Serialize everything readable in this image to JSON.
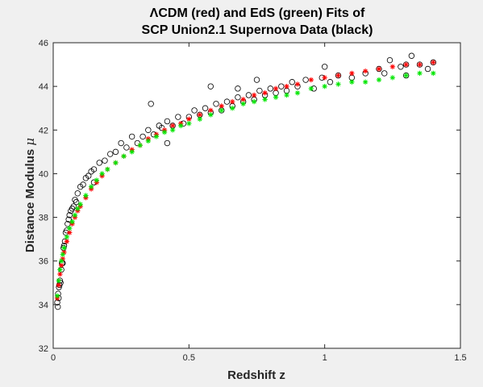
{
  "chart_data": {
    "type": "scatter",
    "title_lines": [
      "ΛCDM (red) and EdS (green) Fits of",
      "SCP Union2.1 Supernova Data (black)"
    ],
    "xlabel": "Redshift z",
    "ylabel_text": "Distance Modulus",
    "ylabel_symbol": "μ",
    "xlim": [
      0,
      1.5
    ],
    "ylim": [
      32,
      46
    ],
    "xticks": [
      0,
      0.5,
      1,
      1.5
    ],
    "xtick_labels": [
      "0",
      "0.5",
      "1",
      "1.5"
    ],
    "yticks": [
      32,
      34,
      36,
      38,
      40,
      42,
      44,
      46
    ],
    "ytick_labels": [
      "32",
      "34",
      "36",
      "38",
      "40",
      "42",
      "44",
      "46"
    ],
    "grid": false,
    "colors": {
      "data": "#000000",
      "lcdm": "#ff0000",
      "eds": "#00e600",
      "background": "#f0f0f0"
    },
    "series": [
      {
        "key": "union21",
        "marker": "circle",
        "color": "#000000",
        "x": [
          0.015,
          0.017,
          0.018,
          0.02,
          0.021,
          0.023,
          0.025,
          0.027,
          0.03,
          0.032,
          0.035,
          0.038,
          0.04,
          0.043,
          0.046,
          0.05,
          0.053,
          0.057,
          0.06,
          0.065,
          0.07,
          0.075,
          0.08,
          0.085,
          0.09,
          0.1,
          0.11,
          0.12,
          0.13,
          0.14,
          0.15,
          0.17,
          0.19,
          0.21,
          0.23,
          0.25,
          0.27,
          0.29,
          0.31,
          0.33,
          0.35,
          0.37,
          0.39,
          0.4,
          0.42,
          0.44,
          0.46,
          0.48,
          0.5,
          0.52,
          0.54,
          0.56,
          0.58,
          0.6,
          0.62,
          0.64,
          0.66,
          0.68,
          0.7,
          0.72,
          0.74,
          0.76,
          0.78,
          0.8,
          0.82,
          0.84,
          0.86,
          0.88,
          0.9,
          0.93,
          0.96,
          0.99,
          1.02,
          1.05,
          1.1,
          1.15,
          1.2,
          1.24,
          1.28,
          1.3,
          1.32,
          1.35,
          1.38,
          1.4,
          0.36,
          0.58,
          0.75,
          1.0,
          1.22,
          1.3,
          0.15,
          0.42,
          0.68
        ],
        "y": [
          34.1,
          33.9,
          34.5,
          34.3,
          34.8,
          34.9,
          35.1,
          35.0,
          35.6,
          35.9,
          35.9,
          36.6,
          36.7,
          36.9,
          37.3,
          37.4,
          37.7,
          37.9,
          38.1,
          38.3,
          38.4,
          38.5,
          38.8,
          38.7,
          39.1,
          39.4,
          39.5,
          39.8,
          39.9,
          40.1,
          40.2,
          40.5,
          40.6,
          40.9,
          41.0,
          41.4,
          41.2,
          41.7,
          41.4,
          41.7,
          42.0,
          41.8,
          42.2,
          42.1,
          42.4,
          42.2,
          42.6,
          42.3,
          42.6,
          42.9,
          42.7,
          43.0,
          42.8,
          43.2,
          42.9,
          43.3,
          43.1,
          43.5,
          43.3,
          43.6,
          43.4,
          43.8,
          43.6,
          43.9,
          43.7,
          44.0,
          43.8,
          44.2,
          44.0,
          44.3,
          43.9,
          44.4,
          44.2,
          44.5,
          44.4,
          44.6,
          44.8,
          45.2,
          44.9,
          45.0,
          45.4,
          45.0,
          44.8,
          45.1,
          43.2,
          44.0,
          44.3,
          44.9,
          44.6,
          44.5,
          39.6,
          41.4,
          43.9
        ]
      },
      {
        "key": "lcdm",
        "marker": "asterisk",
        "color": "#ff0000",
        "x": [
          0.015,
          0.02,
          0.025,
          0.03,
          0.035,
          0.04,
          0.05,
          0.06,
          0.07,
          0.08,
          0.09,
          0.1,
          0.12,
          0.14,
          0.16,
          0.18,
          0.2,
          0.23,
          0.26,
          0.29,
          0.32,
          0.35,
          0.38,
          0.41,
          0.44,
          0.47,
          0.5,
          0.54,
          0.58,
          0.62,
          0.66,
          0.7,
          0.74,
          0.78,
          0.82,
          0.86,
          0.9,
          0.95,
          1.0,
          1.05,
          1.1,
          1.15,
          1.2,
          1.25,
          1.3,
          1.35,
          1.4
        ],
        "y": [
          34.3,
          34.9,
          35.4,
          35.8,
          36.1,
          36.4,
          36.9,
          37.3,
          37.7,
          38.0,
          38.3,
          38.5,
          38.9,
          39.3,
          39.6,
          39.9,
          40.2,
          40.5,
          40.8,
          41.1,
          41.3,
          41.6,
          41.8,
          42.0,
          42.2,
          42.3,
          42.5,
          42.7,
          42.9,
          43.1,
          43.3,
          43.4,
          43.6,
          43.7,
          43.9,
          44.0,
          44.1,
          44.3,
          44.4,
          44.5,
          44.6,
          44.7,
          44.8,
          44.9,
          45.0,
          45.0,
          45.1
        ]
      },
      {
        "key": "eds",
        "marker": "asterisk",
        "color": "#00e600",
        "x": [
          0.015,
          0.02,
          0.025,
          0.03,
          0.035,
          0.04,
          0.05,
          0.06,
          0.07,
          0.08,
          0.09,
          0.1,
          0.12,
          0.14,
          0.16,
          0.18,
          0.2,
          0.23,
          0.26,
          0.29,
          0.32,
          0.35,
          0.38,
          0.41,
          0.44,
          0.47,
          0.5,
          0.54,
          0.58,
          0.62,
          0.66,
          0.7,
          0.74,
          0.78,
          0.82,
          0.86,
          0.9,
          0.95,
          1.0,
          1.05,
          1.1,
          1.15,
          1.2,
          1.25,
          1.3,
          1.35,
          1.4
        ],
        "y": [
          34.4,
          35.1,
          35.6,
          36.0,
          36.3,
          36.6,
          37.1,
          37.5,
          37.8,
          38.1,
          38.4,
          38.6,
          39.0,
          39.4,
          39.7,
          40.0,
          40.2,
          40.5,
          40.8,
          41.0,
          41.3,
          41.5,
          41.7,
          41.9,
          42.0,
          42.2,
          42.3,
          42.5,
          42.7,
          42.9,
          43.0,
          43.2,
          43.3,
          43.4,
          43.5,
          43.6,
          43.7,
          43.9,
          44.0,
          44.1,
          44.2,
          44.2,
          44.3,
          44.4,
          44.5,
          44.6,
          44.6
        ]
      }
    ]
  }
}
